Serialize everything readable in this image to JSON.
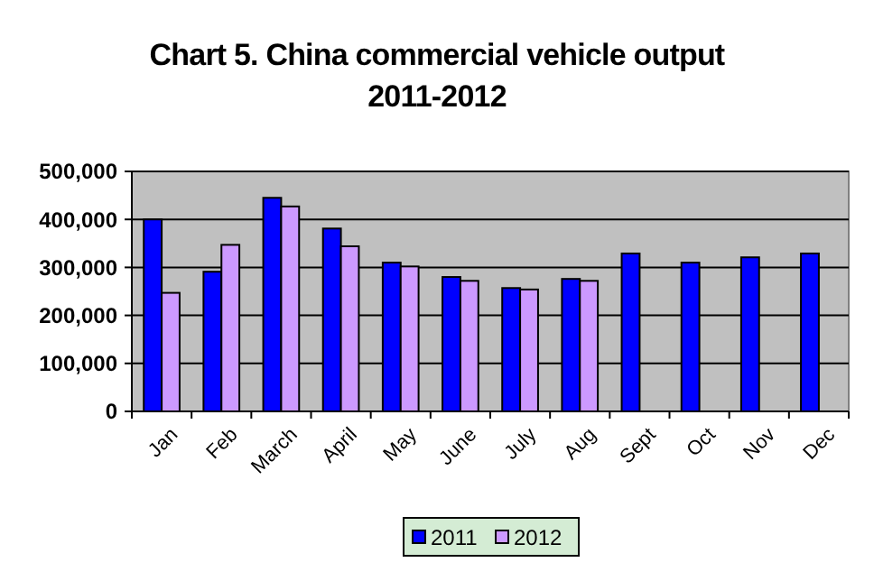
{
  "chart_data": {
    "type": "bar",
    "title": "Chart 5. China commercial vehicle output\n2011-2012",
    "categories": [
      "Jan",
      "Feb",
      "March",
      "April",
      "May",
      "June",
      "July",
      "Aug",
      "Sept",
      "Oct",
      "Nov",
      "Dec"
    ],
    "series": [
      {
        "name": "2011",
        "color": "#0000ff",
        "values": [
          400000,
          291000,
          445000,
          381000,
          310000,
          280000,
          257000,
          276000,
          329000,
          310000,
          321000,
          329000
        ]
      },
      {
        "name": "2012",
        "color": "#cc99ff",
        "values": [
          247000,
          347000,
          427000,
          344000,
          302000,
          272000,
          254000,
          272000,
          null,
          null,
          null,
          null
        ]
      }
    ],
    "ylim": [
      0,
      500000
    ],
    "yticks": [
      {
        "value": 0,
        "label": "0"
      },
      {
        "value": 100000,
        "label": "100,000"
      },
      {
        "value": 200000,
        "label": "200,000"
      },
      {
        "value": 300000,
        "label": "300,000"
      },
      {
        "value": 400000,
        "label": "400,000"
      },
      {
        "value": 500000,
        "label": "500,000"
      }
    ],
    "grid": "y",
    "legend": "bottom"
  }
}
